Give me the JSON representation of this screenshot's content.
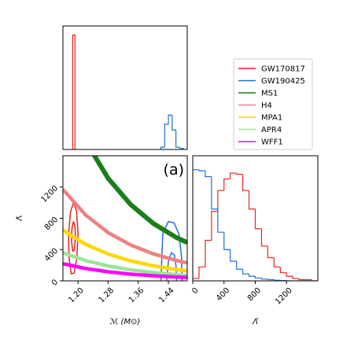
{
  "chart_data": [
    {
      "type": "histogram",
      "xlim": [
        1.16,
        1.49
      ],
      "ylim": [
        0,
        1.08
      ],
      "series": [
        {
          "color": "#e8211d",
          "bins": [
            1.186,
            1.192
          ],
          "counts": [
            1.0
          ]
        },
        {
          "color": "#1f6fd6",
          "bins": [
            1.42,
            1.43,
            1.44,
            1.45,
            1.46,
            1.47,
            1.48
          ],
          "counts": [
            0.02,
            0.22,
            0.3,
            0.17,
            0.02,
            0.01
          ]
        }
      ]
    },
    {
      "type": "line",
      "xlabel": "ℳ (M⊙)",
      "ylabel": "Λ̃",
      "annotation": "(a)",
      "xlim": [
        1.16,
        1.49
      ],
      "ylim": [
        0,
        1600
      ],
      "xticks": [
        {
          "value": 1.2,
          "label": "1.20"
        },
        1.28,
        1.36,
        1.44
      ],
      "yticks": [
        0,
        400,
        800,
        1200
      ],
      "series": [
        {
          "name": "GW170817",
          "color": "#e8211d",
          "contours": [
            {
              "x": [
                1.188,
                1.196,
                1.2,
                1.197,
                1.19,
                1.182,
                1.176,
                1.175,
                1.18,
                1.188
              ],
              "values": [
                1000,
                900,
                600,
                300,
                100,
                90,
                300,
                600,
                880,
                1000
              ]
            },
            {
              "x": [
                1.188,
                1.192,
                1.193,
                1.19,
                1.186,
                1.183,
                1.184,
                1.188
              ],
              "values": [
                760,
                700,
                550,
                390,
                380,
                500,
                680,
                760
              ]
            }
          ]
        },
        {
          "name": "GW190425",
          "color": "#1f6fd6",
          "contours": [
            {
              "x": [
                1.42,
                1.425,
                1.44,
                1.455,
                1.468,
                1.475,
                1.476
              ],
              "values": [
                -20,
                600,
                760,
                740,
                600,
                300,
                -20
              ]
            },
            {
              "x": [
                1.435,
                1.44,
                1.448,
                1.456,
                1.46,
                1.462
              ],
              "values": [
                -20,
                250,
                360,
                330,
                200,
                -20
              ]
            }
          ]
        },
        {
          "name": "MS1",
          "color": "#1a7f1a",
          "x": [
            1.16,
            1.22,
            1.28,
            1.34,
            1.4,
            1.46,
            1.49
          ],
          "values": [
            2487,
            1791,
            1311,
            975,
            734,
            557,
            490
          ]
        },
        {
          "name": "H4",
          "color": "#f08080",
          "x": [
            1.16,
            1.22,
            1.28,
            1.34,
            1.4,
            1.46,
            1.49
          ],
          "values": [
            1170,
            843,
            617,
            458,
            345,
            262,
            230
          ]
        },
        {
          "name": "MPA1",
          "color": "#ffd700",
          "x": [
            1.16,
            1.22,
            1.28,
            1.34,
            1.4,
            1.46,
            1.49
          ],
          "values": [
            650,
            468,
            343,
            255,
            192,
            146,
            128
          ]
        },
        {
          "name": "APR4",
          "color": "#98e698",
          "x": [
            1.16,
            1.22,
            1.28,
            1.34,
            1.4,
            1.46,
            1.49
          ],
          "values": [
            360,
            259,
            190,
            141,
            106,
            81,
            71
          ]
        },
        {
          "name": "WFF1",
          "color": "#ff00ff",
          "x": [
            1.16,
            1.22,
            1.28,
            1.34,
            1.4,
            1.46,
            1.49
          ],
          "values": [
            220,
            158,
            116,
            86,
            65,
            49,
            43
          ]
        }
      ]
    },
    {
      "type": "histogram",
      "xlabel": "Λ̃",
      "xlim": [
        0,
        1600
      ],
      "ylim": [
        0,
        1.08
      ],
      "xticks": [
        0,
        400,
        800,
        1200
      ],
      "series": [
        {
          "color": "#e8211d",
          "bins": [
            0,
            80,
            160,
            240,
            320,
            400,
            480,
            560,
            640,
            720,
            800,
            880,
            960,
            1040,
            1120,
            1200,
            1280,
            1360,
            1440,
            1520,
            1600
          ],
          "counts": [
            0.02,
            0.12,
            0.35,
            0.6,
            0.78,
            0.88,
            0.93,
            0.92,
            0.78,
            0.62,
            0.45,
            0.3,
            0.2,
            0.12,
            0.07,
            0.04,
            0.02,
            0.01,
            0.01,
            0.0
          ]
        },
        {
          "color": "#1f6fd6",
          "bins": [
            0,
            80,
            160,
            240,
            320,
            400,
            480,
            560,
            640,
            720,
            800,
            880,
            960,
            1040,
            1120,
            1200,
            1280,
            1360,
            1440,
            1520,
            1600
          ],
          "counts": [
            0.96,
            0.95,
            0.9,
            0.62,
            0.42,
            0.27,
            0.17,
            0.1,
            0.06,
            0.04,
            0.025,
            0.015,
            0.01,
            0.005,
            0.003,
            0,
            0,
            0,
            0,
            0
          ]
        }
      ]
    }
  ]
}
